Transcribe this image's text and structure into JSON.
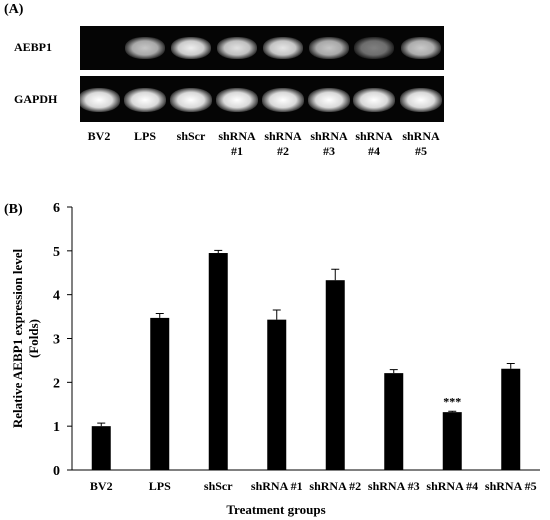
{
  "panel_a": {
    "label": "(A)",
    "rows": [
      {
        "label": "AEBP1",
        "band_intensity": [
          0.0,
          0.72,
          0.92,
          0.86,
          0.88,
          0.72,
          0.38,
          0.74
        ]
      },
      {
        "label": "GAPDH",
        "band_intensity": [
          1.0,
          1.0,
          1.0,
          1.0,
          1.0,
          1.0,
          1.0,
          1.0
        ]
      }
    ],
    "lanes": [
      "BV2",
      "LPS",
      "shScr",
      "shRNA\n#1",
      "shRNA\n#2",
      "shRNA\n#3",
      "shRNA\n#4",
      "shRNA\n#5"
    ]
  },
  "panel_b": {
    "label": "(B)"
  },
  "chart_data": {
    "type": "bar",
    "categories": [
      "BV2",
      "LPS",
      "shScr",
      "shRNA #1",
      "shRNA #2",
      "shRNA #3",
      "shRNA #4",
      "shRNA #5"
    ],
    "values": [
      1.0,
      3.47,
      4.95,
      3.43,
      4.33,
      2.21,
      1.32,
      2.31
    ],
    "errors": [
      0.07,
      0.1,
      0.06,
      0.22,
      0.25,
      0.08,
      0.02,
      0.12
    ],
    "annotations": [
      {
        "category": "shRNA #4",
        "text": "***"
      }
    ],
    "xlabel": "Treatment groups",
    "ylabel": "Relative AEBP1 expression level\n(Folds)",
    "ylim": [
      0,
      6
    ],
    "yticks": [
      0,
      1,
      2,
      3,
      4,
      5,
      6
    ],
    "bar_color": "#000000",
    "grid": false
  }
}
